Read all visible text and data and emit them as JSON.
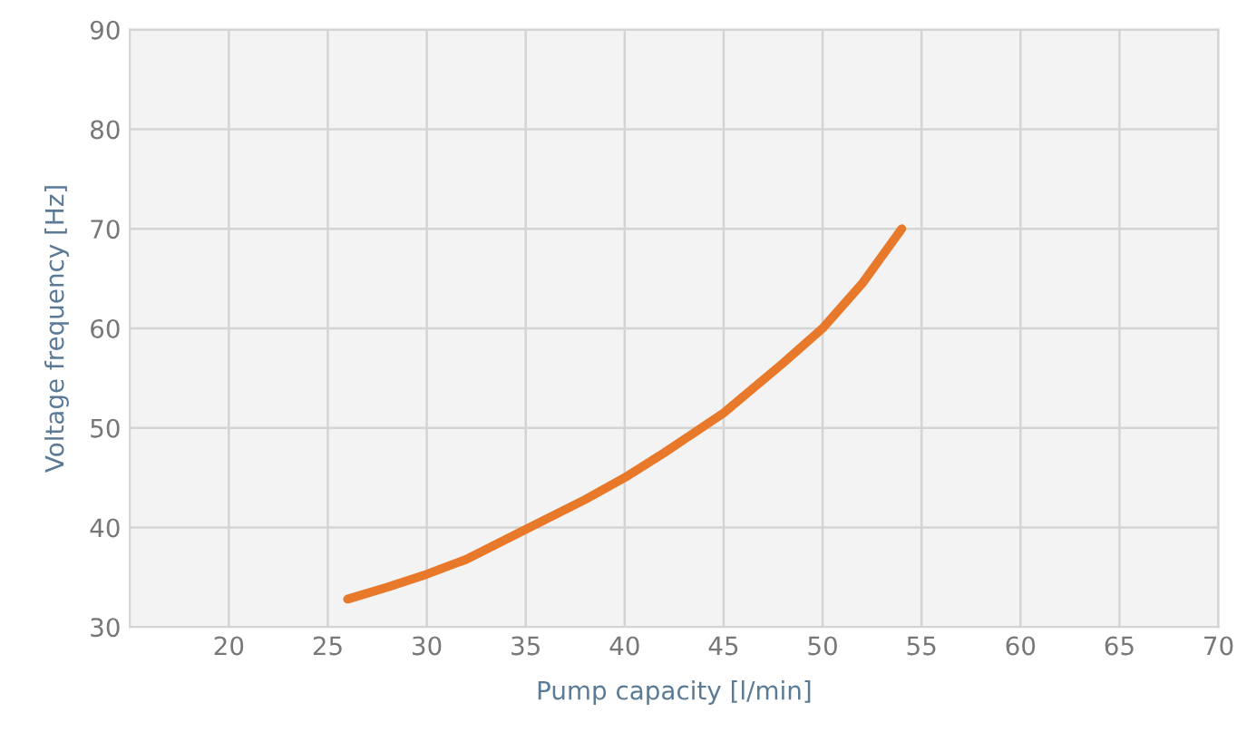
{
  "chart_data": {
    "type": "line",
    "xlabel": "Pump capacity [l/min]",
    "ylabel": "Voltage frequency [Hz]",
    "series": [
      {
        "color": "#e8782a",
        "x": [
          26,
          28,
          30,
          32,
          35,
          38,
          40,
          42,
          45,
          48,
          50,
          52,
          54
        ],
        "values": [
          32.8,
          34,
          35.3,
          36.8,
          39.8,
          42.8,
          45,
          47.5,
          51.5,
          56.5,
          60,
          64.5,
          70
        ]
      }
    ],
    "xlim": [
      15,
      70
    ],
    "xticks": [
      20,
      25,
      30,
      35,
      40,
      45,
      50,
      55,
      60,
      65,
      70
    ],
    "ylim": [
      30,
      90
    ],
    "yticks": [
      30,
      40,
      50,
      60,
      70,
      80,
      90
    ],
    "grid": true,
    "line_style": "solid",
    "marker": "none"
  }
}
